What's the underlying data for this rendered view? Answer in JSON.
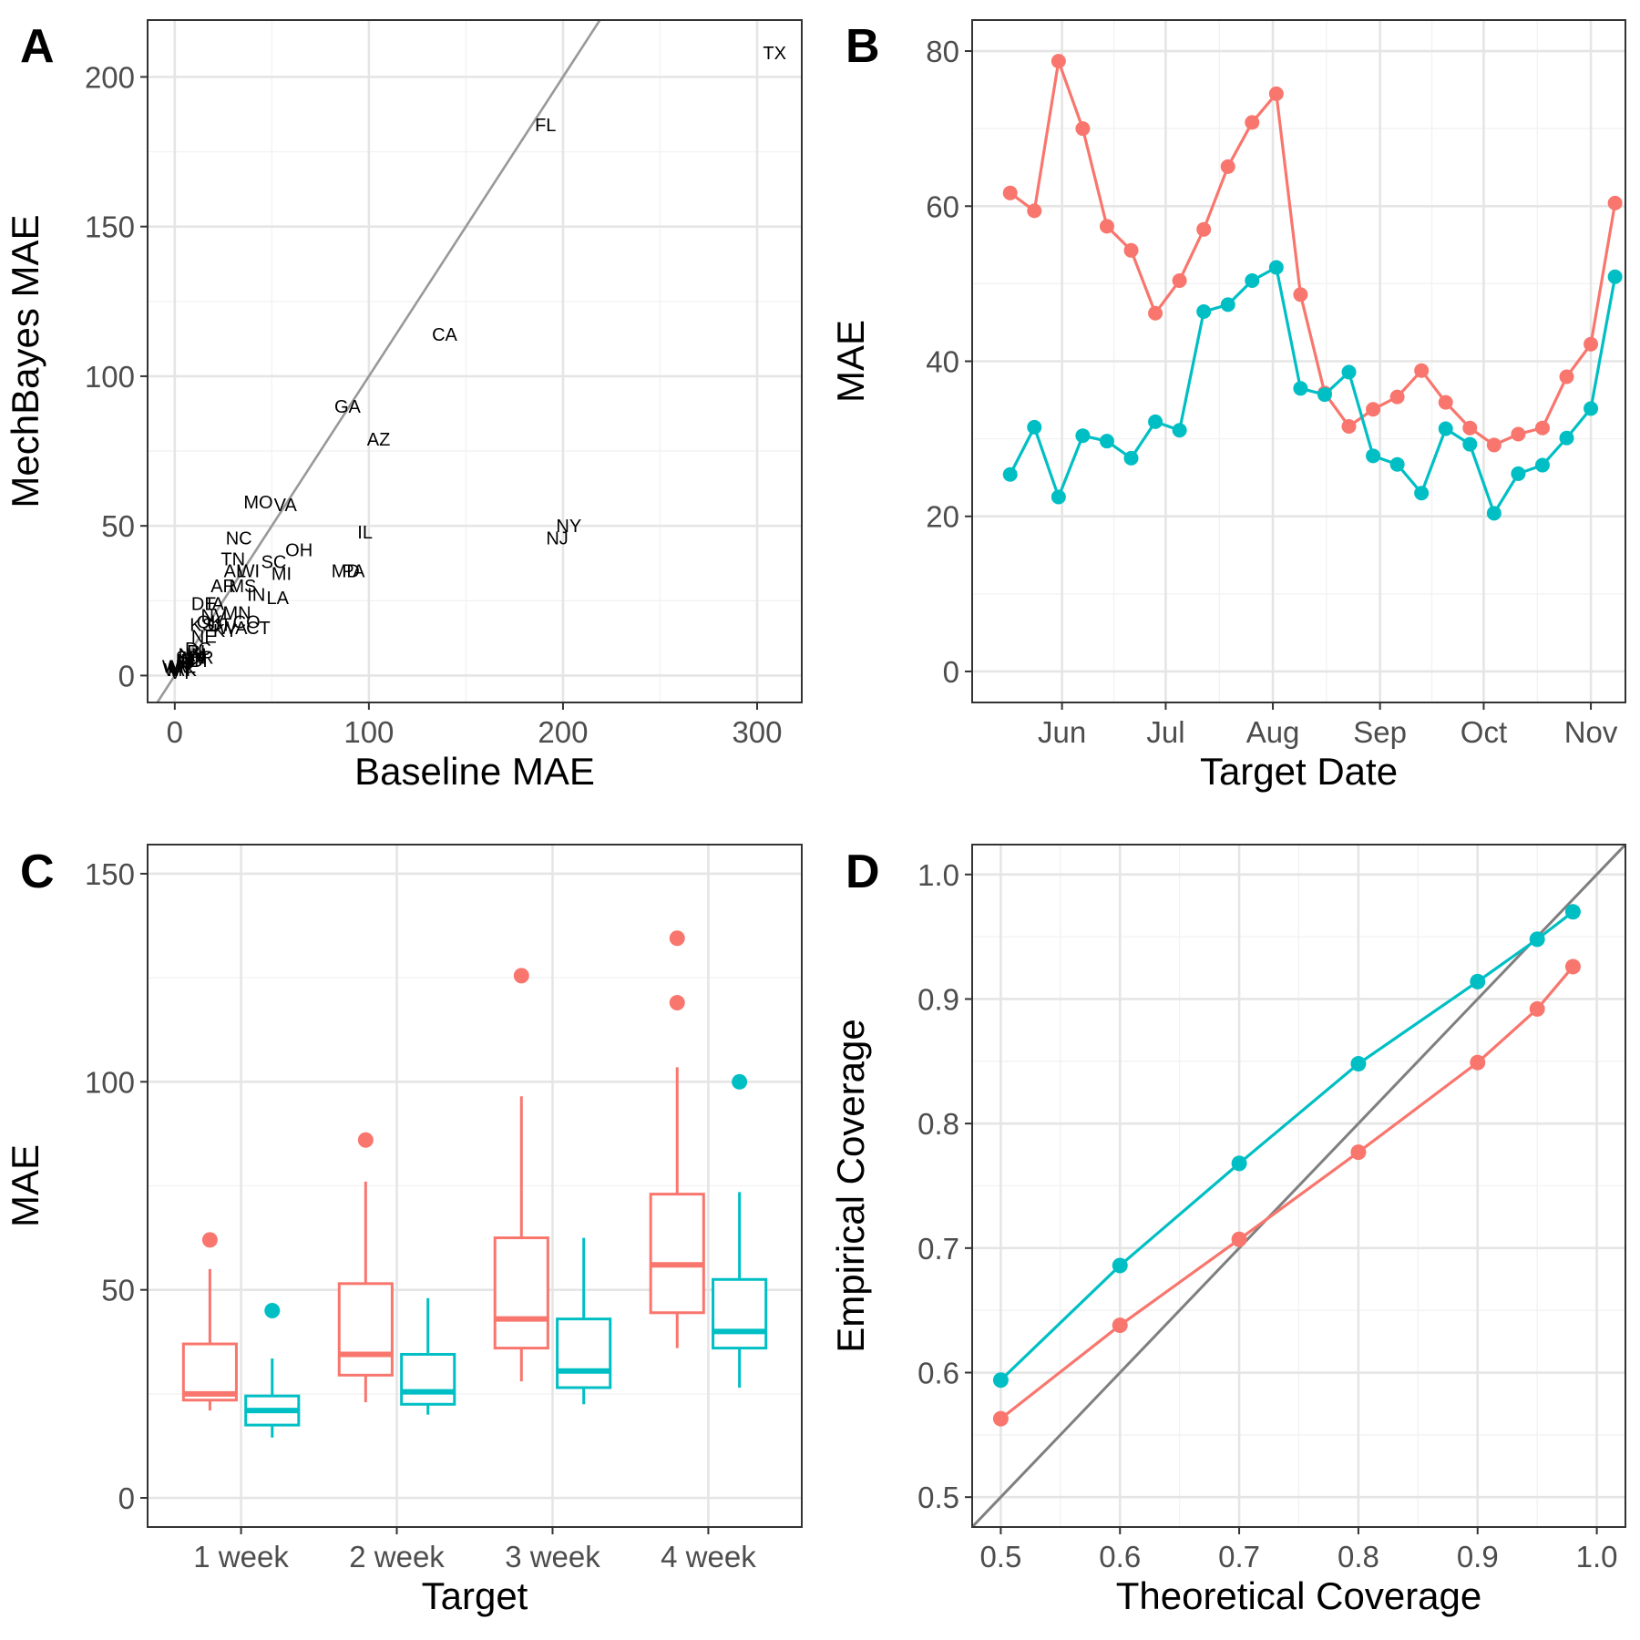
{
  "chart_data": [
    {
      "panel": "A",
      "type": "scatter",
      "xlabel": "Baseline MAE",
      "ylabel": "MechBayes MAE",
      "xlim": [
        -14,
        323
      ],
      "ylim": [
        -9,
        219
      ],
      "xticks": [
        0,
        100,
        200,
        300
      ],
      "yticks": [
        0,
        50,
        100,
        150,
        200
      ],
      "grid": true,
      "reference_line": "y = x",
      "colors": {
        "points": "#000000",
        "reference_line": "#999999"
      },
      "points": [
        {
          "label": "TX",
          "x": 309,
          "y": 208
        },
        {
          "label": "FL",
          "x": 191,
          "y": 184
        },
        {
          "label": "CA",
          "x": 139,
          "y": 114
        },
        {
          "label": "GA",
          "x": 89,
          "y": 90
        },
        {
          "label": "AZ",
          "x": 105,
          "y": 79
        },
        {
          "label": "MO",
          "x": 43,
          "y": 58
        },
        {
          "label": "VA",
          "x": 57,
          "y": 57
        },
        {
          "label": "IL",
          "x": 98,
          "y": 48
        },
        {
          "label": "NY",
          "x": 203,
          "y": 50
        },
        {
          "label": "NJ",
          "x": 197,
          "y": 46
        },
        {
          "label": "NC",
          "x": 33,
          "y": 46
        },
        {
          "label": "OH",
          "x": 64,
          "y": 42
        },
        {
          "label": "SC",
          "x": 51,
          "y": 38
        },
        {
          "label": "TN",
          "x": 30,
          "y": 39
        },
        {
          "label": "MD",
          "x": 88,
          "y": 35
        },
        {
          "label": "PA",
          "x": 92,
          "y": 35
        },
        {
          "label": "AL",
          "x": 31,
          "y": 35
        },
        {
          "label": "WI",
          "x": 38,
          "y": 35
        },
        {
          "label": "MI",
          "x": 55,
          "y": 34
        },
        {
          "label": "AR",
          "x": 25,
          "y": 30
        },
        {
          "label": "MS",
          "x": 35,
          "y": 30
        },
        {
          "label": "IN",
          "x": 42,
          "y": 27
        },
        {
          "label": "LA",
          "x": 53,
          "y": 26
        },
        {
          "label": "DE",
          "x": 15,
          "y": 24
        },
        {
          "label": "IA",
          "x": 21,
          "y": 24
        },
        {
          "label": "MN",
          "x": 32,
          "y": 21
        },
        {
          "label": "NV",
          "x": 20,
          "y": 20
        },
        {
          "label": "OK",
          "x": 18,
          "y": 18
        },
        {
          "label": "KS",
          "x": 14,
          "y": 17
        },
        {
          "label": "UT",
          "x": 23,
          "y": 17
        },
        {
          "label": "WA",
          "x": 30,
          "y": 16
        },
        {
          "label": "CO",
          "x": 37,
          "y": 18
        },
        {
          "label": "CT",
          "x": 43,
          "y": 16
        },
        {
          "label": "KY",
          "x": 26,
          "y": 15
        },
        {
          "label": "NE",
          "x": 15,
          "y": 13
        },
        {
          "label": "DC",
          "x": 12,
          "y": 9
        },
        {
          "label": "RI",
          "x": 11,
          "y": 8
        },
        {
          "label": "NM",
          "x": 9,
          "y": 7
        },
        {
          "label": "OR",
          "x": 13,
          "y": 6
        },
        {
          "label": "SD",
          "x": 7,
          "y": 6
        },
        {
          "label": "ND",
          "x": 8,
          "y": 5
        },
        {
          "label": "ID",
          "x": 5,
          "y": 5
        },
        {
          "label": "NH",
          "x": 10,
          "y": 5
        },
        {
          "label": "HI",
          "x": 12,
          "y": 6
        },
        {
          "label": "ME",
          "x": 4,
          "y": 3
        },
        {
          "label": "WV",
          "x": 1,
          "y": 3
        },
        {
          "label": "MT",
          "x": 3,
          "y": 2
        },
        {
          "label": "WY",
          "x": 2,
          "y": 2
        },
        {
          "label": "AK",
          "x": 5,
          "y": 2
        },
        {
          "label": "VT",
          "x": 3,
          "y": 1
        }
      ]
    },
    {
      "panel": "B",
      "type": "line",
      "xlabel": "Target Date",
      "ylabel": "MAE",
      "xlim": [
        -26,
        163
      ],
      "ylim": [
        -4,
        84
      ],
      "x_ticks": [
        {
          "label": "Jun",
          "day": 0
        },
        {
          "label": "Jul",
          "day": 30
        },
        {
          "label": "Aug",
          "day": 61
        },
        {
          "label": "Sep",
          "day": 92
        },
        {
          "label": "Oct",
          "day": 122
        },
        {
          "label": "Nov",
          "day": 153
        }
      ],
      "yticks": [
        0,
        20,
        40,
        60,
        80
      ],
      "grid": true,
      "series": [
        {
          "color": "#F8766D",
          "points": [
            {
              "x": "May 17",
              "y": 61.7
            },
            {
              "x": "May 24",
              "y": 59.4
            },
            {
              "x": "May 31",
              "y": 78.7
            },
            {
              "x": "Jun 7",
              "y": 70.0
            },
            {
              "x": "Jun 14",
              "y": 57.4
            },
            {
              "x": "Jun 21",
              "y": 54.3
            },
            {
              "x": "Jun 28",
              "y": 46.2
            },
            {
              "x": "Jul 5",
              "y": 50.4
            },
            {
              "x": "Jul 12",
              "y": 57.0
            },
            {
              "x": "Jul 19",
              "y": 65.1
            },
            {
              "x": "Jul 26",
              "y": 70.8
            },
            {
              "x": "Aug 2",
              "y": 74.5
            },
            {
              "x": "Aug 9",
              "y": 48.6
            },
            {
              "x": "Aug 16",
              "y": 35.9
            },
            {
              "x": "Aug 23",
              "y": 31.6
            },
            {
              "x": "Aug 30",
              "y": 33.8
            },
            {
              "x": "Sep 6",
              "y": 35.4
            },
            {
              "x": "Sep 13",
              "y": 38.8
            },
            {
              "x": "Sep 20",
              "y": 34.7
            },
            {
              "x": "Sep 27",
              "y": 31.4
            },
            {
              "x": "Oct 4",
              "y": 29.2
            },
            {
              "x": "Oct 11",
              "y": 30.6
            },
            {
              "x": "Oct 18",
              "y": 31.4
            },
            {
              "x": "Oct 25",
              "y": 38.0
            },
            {
              "x": "Nov 1",
              "y": 42.2
            },
            {
              "x": "Nov 8",
              "y": 60.4
            }
          ]
        },
        {
          "color": "#00BFC4",
          "points": [
            {
              "x": "May 17",
              "y": 25.4
            },
            {
              "x": "May 24",
              "y": 31.5
            },
            {
              "x": "May 31",
              "y": 22.5
            },
            {
              "x": "Jun 7",
              "y": 30.4
            },
            {
              "x": "Jun 14",
              "y": 29.7
            },
            {
              "x": "Jun 21",
              "y": 27.5
            },
            {
              "x": "Jun 28",
              "y": 32.2
            },
            {
              "x": "Jul 5",
              "y": 31.1
            },
            {
              "x": "Jul 12",
              "y": 46.4
            },
            {
              "x": "Jul 19",
              "y": 47.3
            },
            {
              "x": "Jul 26",
              "y": 50.4
            },
            {
              "x": "Aug 2",
              "y": 52.1
            },
            {
              "x": "Aug 9",
              "y": 36.5
            },
            {
              "x": "Aug 16",
              "y": 35.7
            },
            {
              "x": "Aug 23",
              "y": 38.6
            },
            {
              "x": "Aug 30",
              "y": 27.8
            },
            {
              "x": "Sep 6",
              "y": 26.7
            },
            {
              "x": "Sep 13",
              "y": 23.0
            },
            {
              "x": "Sep 20",
              "y": 31.3
            },
            {
              "x": "Sep 27",
              "y": 29.3
            },
            {
              "x": "Oct 4",
              "y": 20.4
            },
            {
              "x": "Oct 11",
              "y": 25.5
            },
            {
              "x": "Oct 18",
              "y": 26.6
            },
            {
              "x": "Oct 25",
              "y": 30.1
            },
            {
              "x": "Nov 1",
              "y": 33.9
            },
            {
              "x": "Nov 8",
              "y": 50.9
            }
          ]
        }
      ]
    },
    {
      "panel": "C",
      "type": "box",
      "xlabel": "Target",
      "ylabel": "MAE",
      "categories": [
        "1 week",
        "2 week",
        "3 week",
        "4 week"
      ],
      "ylim": [
        -7,
        157
      ],
      "yticks": [
        0,
        50,
        100,
        150
      ],
      "grid": true,
      "series": [
        {
          "color": "#F8766D",
          "boxes": [
            {
              "min": 21,
              "q1": 23.5,
              "median": 25,
              "q3": 37,
              "max": 55,
              "outliers": [
                62
              ]
            },
            {
              "min": 23,
              "q1": 29.5,
              "median": 34.5,
              "q3": 51.5,
              "max": 76,
              "outliers": [
                86
              ]
            },
            {
              "min": 28,
              "q1": 36,
              "median": 43,
              "q3": 62.5,
              "max": 96.5,
              "outliers": [
                125.5
              ]
            },
            {
              "min": 36,
              "q1": 44.5,
              "median": 56,
              "q3": 73,
              "max": 103.5,
              "outliers": [
                119,
                134.5
              ]
            }
          ]
        },
        {
          "color": "#00BFC4",
          "boxes": [
            {
              "min": 14.5,
              "q1": 17.5,
              "median": 21,
              "q3": 24.5,
              "max": 33.5,
              "outliers": [
                45
              ]
            },
            {
              "min": 20,
              "q1": 22.5,
              "median": 25.5,
              "q3": 34.5,
              "max": 48,
              "outliers": []
            },
            {
              "min": 22.5,
              "q1": 26.5,
              "median": 30.5,
              "q3": 43,
              "max": 62.5,
              "outliers": []
            },
            {
              "min": 26.5,
              "q1": 36,
              "median": 40,
              "q3": 52.5,
              "max": 73.5,
              "outliers": [
                100
              ]
            }
          ]
        }
      ]
    },
    {
      "panel": "D",
      "type": "line",
      "xlabel": "Theoretical Coverage",
      "ylabel": "Empirical Coverage",
      "xlim": [
        0.476,
        1.024
      ],
      "ylim": [
        0.476,
        1.024
      ],
      "xticks": [
        "0.5",
        "0.6",
        "0.7",
        "0.8",
        "0.9",
        "1.0"
      ],
      "yticks": [
        "0.5",
        "0.6",
        "0.7",
        "0.8",
        "0.9",
        "1.0"
      ],
      "grid": true,
      "reference_line": "y = x",
      "colors": {
        "reference_line": "#7f7f7f"
      },
      "x": [
        0.5,
        0.6,
        0.7,
        0.8,
        0.9,
        0.95,
        0.98
      ],
      "series": [
        {
          "color": "#F8766D",
          "values": [
            0.563,
            0.638,
            0.707,
            0.777,
            0.849,
            0.892,
            0.926
          ]
        },
        {
          "color": "#00BFC4",
          "values": [
            0.594,
            0.686,
            0.768,
            0.848,
            0.914,
            0.948,
            0.97
          ]
        }
      ]
    }
  ]
}
